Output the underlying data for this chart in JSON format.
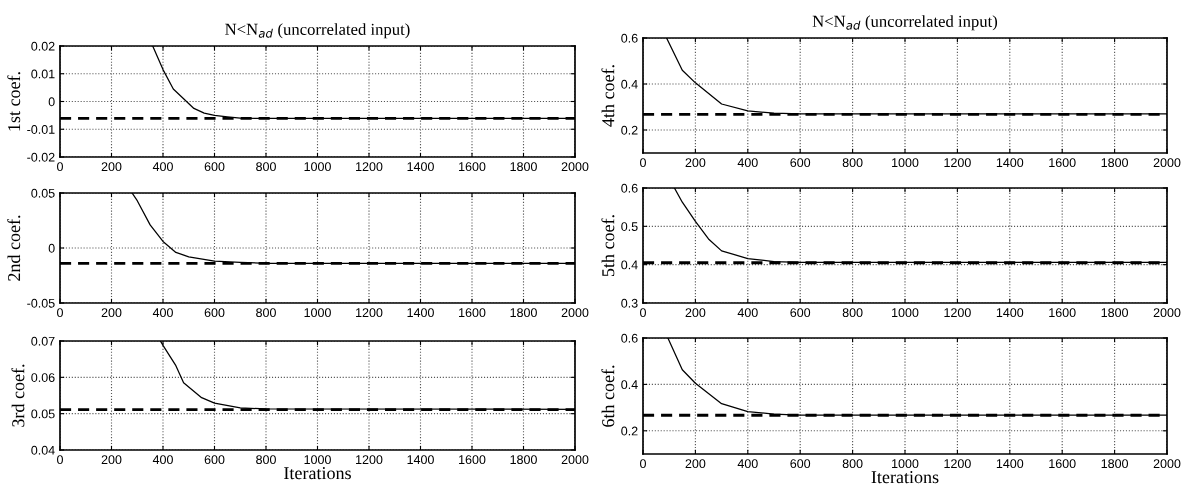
{
  "chart_data": [
    {
      "type": "line",
      "title": "N<N$_{ad}$ (uncorrelated input)",
      "ylabel": "1st coef.",
      "xlim": [
        0,
        2000
      ],
      "xticks": [
        0,
        200,
        400,
        600,
        800,
        1000,
        1200,
        1400,
        1600,
        1800,
        2000
      ],
      "ylim": [
        -0.02,
        0.02
      ],
      "yticks": [
        -0.02,
        -0.01,
        0,
        0.01,
        0.02
      ],
      "grid": true,
      "series": [
        {
          "color": "#000000",
          "line_style": "solid",
          "x": [
            360,
            400,
            440,
            480,
            520,
            560,
            600,
            650,
            700,
            800,
            2000
          ],
          "values": [
            0.02,
            0.0115,
            0.0045,
            0.001,
            -0.0025,
            -0.0042,
            -0.005,
            -0.0055,
            -0.006,
            -0.0061,
            -0.0061
          ]
        }
      ],
      "ref_lines": [
        {
          "axis": "y",
          "value": -0.0061,
          "color": "#000000",
          "line_style": "dashed"
        }
      ]
    },
    {
      "type": "line",
      "ylabel": "2nd coef.",
      "xlim": [
        0,
        2000
      ],
      "xticks": [
        0,
        200,
        400,
        600,
        800,
        1000,
        1200,
        1400,
        1600,
        1800,
        2000
      ],
      "ylim": [
        -0.05,
        0.05
      ],
      "yticks": [
        -0.05,
        0,
        0.05
      ],
      "grid": true,
      "series": [
        {
          "color": "#000000",
          "line_style": "solid",
          "x": [
            280,
            300,
            350,
            400,
            450,
            500,
            600,
            700,
            800,
            2000
          ],
          "values": [
            0.05,
            0.043,
            0.021,
            0.006,
            -0.004,
            -0.008,
            -0.012,
            -0.013,
            -0.014,
            -0.014
          ]
        }
      ],
      "ref_lines": [
        {
          "axis": "y",
          "value": -0.014,
          "color": "#000000",
          "line_style": "dashed"
        }
      ]
    },
    {
      "type": "line",
      "ylabel": "3rd coef.",
      "xlabel": "Iterations",
      "xlim": [
        0,
        2000
      ],
      "xticks": [
        0,
        200,
        400,
        600,
        800,
        1000,
        1200,
        1400,
        1600,
        1800,
        2000
      ],
      "ylim": [
        0.04,
        0.07
      ],
      "yticks": [
        0.04,
        0.05,
        0.06,
        0.07
      ],
      "grid": true,
      "series": [
        {
          "color": "#000000",
          "line_style": "solid",
          "x": [
            390,
            400,
            450,
            480,
            550,
            600,
            700,
            800,
            2000
          ],
          "values": [
            0.07,
            0.0688,
            0.0632,
            0.0585,
            0.0544,
            0.0529,
            0.0516,
            0.0513,
            0.0512
          ]
        }
      ],
      "ref_lines": [
        {
          "axis": "y",
          "value": 0.0511,
          "color": "#000000",
          "line_style": "dashed"
        }
      ]
    },
    {
      "type": "line",
      "title": "N<N$_{ad}$ (uncorrelated input)",
      "ylabel": "4th coef.",
      "xlim": [
        0,
        2000
      ],
      "xticks": [
        0,
        200,
        400,
        600,
        800,
        1000,
        1200,
        1400,
        1600,
        1800,
        2000
      ],
      "ylim": [
        0.1,
        0.6
      ],
      "yticks": [
        0.2,
        0.4,
        0.6
      ],
      "grid": true,
      "series": [
        {
          "color": "#000000",
          "line_style": "solid",
          "x": [
            90,
            150,
            200,
            300,
            400,
            500,
            600,
            2000
          ],
          "values": [
            0.6,
            0.46,
            0.405,
            0.313,
            0.283,
            0.273,
            0.27,
            0.27
          ]
        }
      ],
      "ref_lines": [
        {
          "axis": "y",
          "value": 0.268,
          "color": "#000000",
          "line_style": "dashed"
        }
      ]
    },
    {
      "type": "line",
      "ylabel": "5th coef.",
      "xlim": [
        0,
        2000
      ],
      "xticks": [
        0,
        200,
        400,
        600,
        800,
        1000,
        1200,
        1400,
        1600,
        1800,
        2000
      ],
      "ylim": [
        0.3,
        0.6
      ],
      "yticks": [
        0.3,
        0.4,
        0.5,
        0.6
      ],
      "grid": true,
      "series": [
        {
          "color": "#000000",
          "line_style": "solid",
          "x": [
            120,
            150,
            200,
            250,
            300,
            400,
            500,
            600,
            2000
          ],
          "values": [
            0.6,
            0.563,
            0.513,
            0.467,
            0.436,
            0.416,
            0.408,
            0.406,
            0.406
          ]
        }
      ],
      "ref_lines": [
        {
          "axis": "y",
          "value": 0.405,
          "color": "#000000",
          "line_style": "dashed"
        }
      ]
    },
    {
      "type": "line",
      "ylabel": "6th coef.",
      "xlabel": "Iterations",
      "xlim": [
        0,
        2000
      ],
      "xticks": [
        0,
        200,
        400,
        600,
        800,
        1000,
        1200,
        1400,
        1600,
        1800,
        2000
      ],
      "ylim": [
        0.1,
        0.6
      ],
      "yticks": [
        0.2,
        0.4,
        0.6
      ],
      "grid": true,
      "series": [
        {
          "color": "#000000",
          "line_style": "solid",
          "x": [
            95,
            150,
            200,
            300,
            400,
            500,
            600,
            2000
          ],
          "values": [
            0.6,
            0.463,
            0.405,
            0.317,
            0.283,
            0.272,
            0.268,
            0.268
          ]
        }
      ],
      "ref_lines": [
        {
          "axis": "y",
          "value": 0.267,
          "color": "#000000",
          "line_style": "dashed"
        }
      ]
    }
  ]
}
